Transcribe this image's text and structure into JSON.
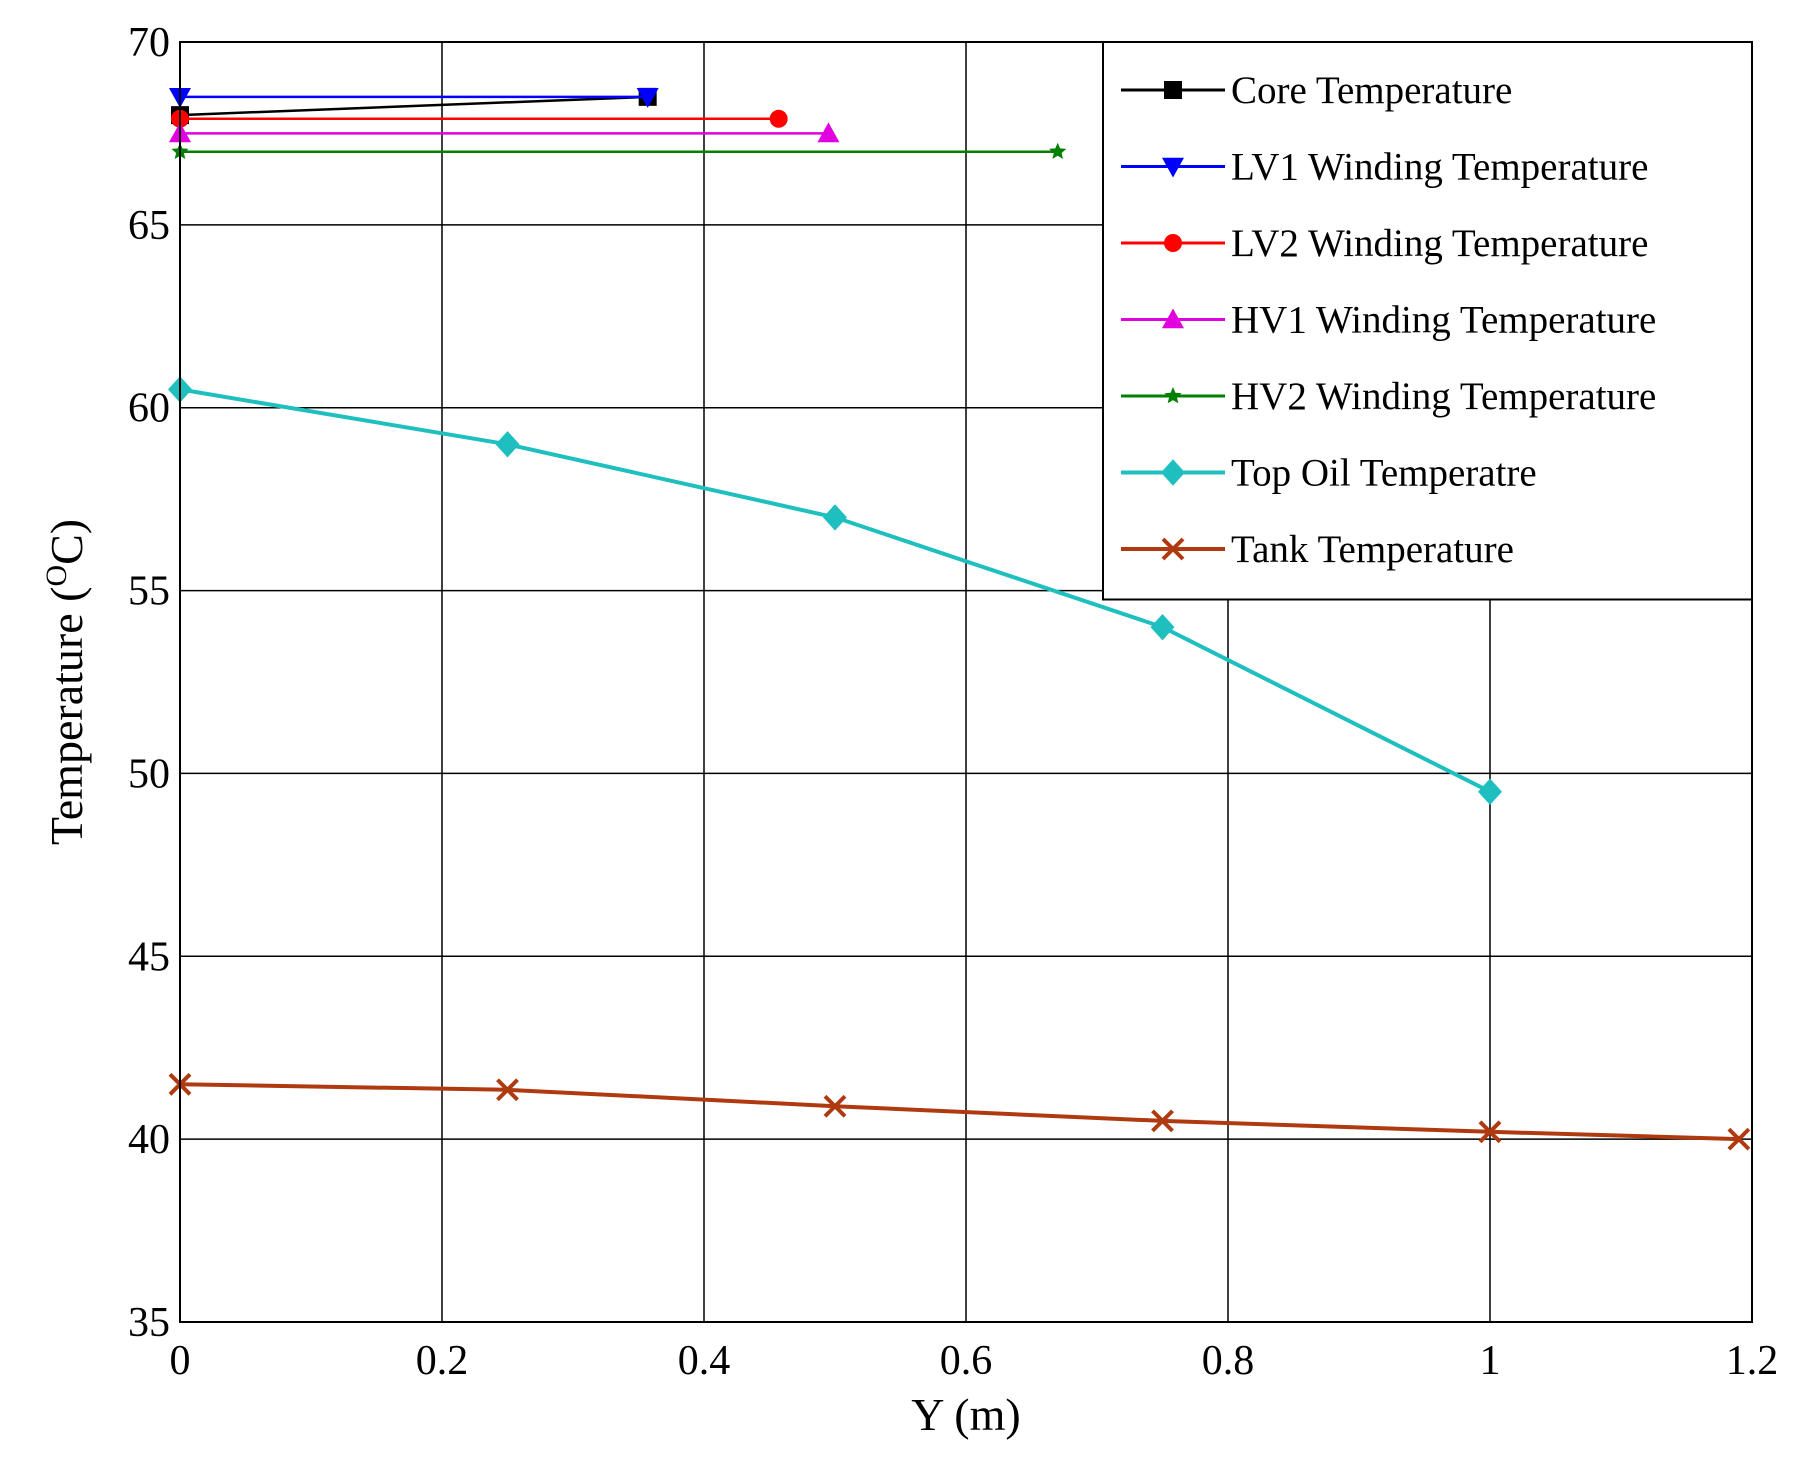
{
  "chart_data": {
    "type": "line",
    "title": "",
    "xlabel": "Y (m)",
    "ylabel_main": "Temperature (",
    "ylabel_sup": "O",
    "ylabel_unit": "C)",
    "xlim": [
      0,
      1.2
    ],
    "ylim": [
      35,
      70
    ],
    "xticks": [
      0,
      0.2,
      0.4,
      0.6,
      0.8,
      1,
      1.2
    ],
    "xtick_labels": [
      "0",
      "0.2",
      "0.4",
      "0.6",
      "0.8",
      "1",
      "1.2"
    ],
    "yticks": [
      35,
      40,
      45,
      50,
      55,
      60,
      65,
      70
    ],
    "ytick_labels": [
      "35",
      "40",
      "45",
      "50",
      "55",
      "60",
      "65",
      "70"
    ],
    "grid": true,
    "legend_position": "top-right",
    "series": [
      {
        "name": "Core Temperature",
        "color": "#000000",
        "marker": "square",
        "x": [
          0,
          0.357
        ],
        "y": [
          68.0,
          68.5
        ]
      },
      {
        "name": "LV1 Winding Temperature",
        "color": "#0000ff",
        "marker": "triangle-down",
        "x": [
          0,
          0.357
        ],
        "y": [
          68.5,
          68.5
        ]
      },
      {
        "name": "LV2 Winding Temperature",
        "color": "#ff0000",
        "marker": "circle",
        "x": [
          0,
          0.457
        ],
        "y": [
          67.9,
          67.9
        ]
      },
      {
        "name": "HV1 Winding Temperature",
        "color": "#e000e0",
        "marker": "triangle-up",
        "x": [
          0,
          0.495
        ],
        "y": [
          67.5,
          67.5
        ]
      },
      {
        "name": "HV2 Winding Temperature",
        "color": "#008000",
        "marker": "star",
        "x": [
          0,
          0.67
        ],
        "y": [
          67.0,
          67.0
        ]
      },
      {
        "name": "Top Oil Temperatre",
        "color": "#1fbfbf",
        "marker": "diamond",
        "x": [
          0,
          0.25,
          0.5,
          0.75,
          1.0
        ],
        "y": [
          60.5,
          59.0,
          57.0,
          54.0,
          49.5
        ]
      },
      {
        "name": "Tank Temperature",
        "color": "#b03a10",
        "marker": "x",
        "x": [
          0,
          0.25,
          0.5,
          0.75,
          1.0,
          1.19
        ],
        "y": [
          41.5,
          41.35,
          40.9,
          40.5,
          40.2,
          40.0
        ]
      }
    ]
  }
}
